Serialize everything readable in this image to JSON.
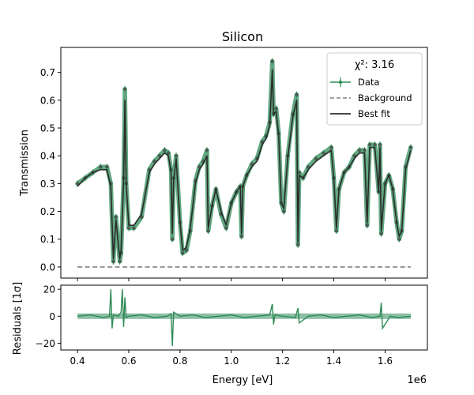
{
  "chart_data": [
    {
      "type": "line",
      "title": "Silicon",
      "xlabel": "",
      "ylabel": "Transmission",
      "xlim": [
        0.335,
        1.765
      ],
      "ylim": [
        -0.04,
        0.79
      ],
      "x_ticks": [
        0.4,
        0.6,
        0.8,
        1.0,
        1.2,
        1.4,
        1.6
      ],
      "x_tick_labels": [
        "",
        "",
        "",
        "",
        "",
        "",
        ""
      ],
      "y_ticks": [
        0.0,
        0.1,
        0.2,
        0.3,
        0.4,
        0.5,
        0.6,
        0.7
      ],
      "y_tick_labels": [
        "0.0",
        "0.1",
        "0.2",
        "0.3",
        "0.4",
        "0.5",
        "0.6",
        "0.7"
      ],
      "grid": false,
      "legend_position": "top-right",
      "legend_title": "χ²: 3.16",
      "series": [
        {
          "name": "Data",
          "style": "points-with-errorbars",
          "color": "#2e8b57",
          "x": [
            0.4,
            0.43,
            0.46,
            0.49,
            0.515,
            0.53,
            0.54,
            0.55,
            0.565,
            0.57,
            0.58,
            0.585,
            0.59,
            0.6,
            0.62,
            0.65,
            0.68,
            0.7,
            0.72,
            0.74,
            0.755,
            0.765,
            0.77,
            0.775,
            0.785,
            0.8,
            0.81,
            0.825,
            0.84,
            0.86,
            0.875,
            0.89,
            0.905,
            0.91,
            0.925,
            0.94,
            0.96,
            0.98,
            1.0,
            1.02,
            1.035,
            1.04,
            1.045,
            1.06,
            1.08,
            1.1,
            1.12,
            1.135,
            1.15,
            1.16,
            1.165,
            1.175,
            1.185,
            1.195,
            1.205,
            1.22,
            1.24,
            1.255,
            1.26,
            1.265,
            1.28,
            1.3,
            1.33,
            1.36,
            1.39,
            1.4,
            1.41,
            1.42,
            1.44,
            1.46,
            1.48,
            1.5,
            1.52,
            1.53,
            1.54,
            1.56,
            1.575,
            1.58,
            1.585,
            1.6,
            1.615,
            1.63,
            1.645,
            1.655,
            1.665,
            1.68,
            1.7
          ],
          "y": [
            0.3,
            0.32,
            0.34,
            0.36,
            0.36,
            0.3,
            0.02,
            0.18,
            0.02,
            0.05,
            0.32,
            0.64,
            0.3,
            0.14,
            0.14,
            0.18,
            0.35,
            0.38,
            0.4,
            0.42,
            0.41,
            0.35,
            0.1,
            0.32,
            0.4,
            0.16,
            0.05,
            0.06,
            0.13,
            0.31,
            0.36,
            0.38,
            0.42,
            0.13,
            0.22,
            0.28,
            0.19,
            0.14,
            0.23,
            0.27,
            0.29,
            0.11,
            0.29,
            0.33,
            0.37,
            0.39,
            0.45,
            0.47,
            0.52,
            0.74,
            0.55,
            0.57,
            0.48,
            0.23,
            0.2,
            0.4,
            0.55,
            0.62,
            0.08,
            0.34,
            0.32,
            0.36,
            0.39,
            0.41,
            0.43,
            0.32,
            0.13,
            0.28,
            0.34,
            0.36,
            0.4,
            0.42,
            0.42,
            0.15,
            0.44,
            0.44,
            0.27,
            0.44,
            0.12,
            0.3,
            0.33,
            0.28,
            0.16,
            0.1,
            0.13,
            0.36,
            0.43
          ]
        },
        {
          "name": "Background",
          "style": "dashed",
          "color": "#808080",
          "x": [
            0.4,
            1.7
          ],
          "y": [
            0.0,
            0.0
          ]
        },
        {
          "name": "Best fit",
          "style": "solid",
          "color": "#2b2b2b",
          "x": [
            0.4,
            0.43,
            0.46,
            0.49,
            0.515,
            0.53,
            0.54,
            0.55,
            0.565,
            0.57,
            0.58,
            0.585,
            0.59,
            0.6,
            0.62,
            0.65,
            0.68,
            0.7,
            0.72,
            0.74,
            0.755,
            0.765,
            0.77,
            0.775,
            0.785,
            0.8,
            0.81,
            0.825,
            0.84,
            0.86,
            0.875,
            0.89,
            0.905,
            0.91,
            0.925,
            0.94,
            0.96,
            0.98,
            1.0,
            1.02,
            1.035,
            1.04,
            1.045,
            1.06,
            1.08,
            1.1,
            1.12,
            1.135,
            1.15,
            1.16,
            1.165,
            1.175,
            1.185,
            1.195,
            1.205,
            1.22,
            1.24,
            1.255,
            1.26,
            1.265,
            1.28,
            1.3,
            1.33,
            1.36,
            1.39,
            1.4,
            1.41,
            1.42,
            1.44,
            1.46,
            1.48,
            1.5,
            1.52,
            1.53,
            1.54,
            1.56,
            1.575,
            1.58,
            1.585,
            1.6,
            1.615,
            1.63,
            1.645,
            1.655,
            1.665,
            1.68,
            1.7
          ],
          "y": [
            0.29,
            0.32,
            0.34,
            0.35,
            0.35,
            0.29,
            0.03,
            0.17,
            0.03,
            0.06,
            0.31,
            0.6,
            0.3,
            0.15,
            0.15,
            0.19,
            0.34,
            0.37,
            0.39,
            0.41,
            0.4,
            0.34,
            0.12,
            0.31,
            0.39,
            0.16,
            0.06,
            0.07,
            0.14,
            0.3,
            0.35,
            0.37,
            0.4,
            0.14,
            0.22,
            0.28,
            0.2,
            0.15,
            0.23,
            0.27,
            0.29,
            0.12,
            0.29,
            0.33,
            0.36,
            0.38,
            0.44,
            0.46,
            0.51,
            0.71,
            0.55,
            0.56,
            0.47,
            0.23,
            0.21,
            0.39,
            0.54,
            0.6,
            0.09,
            0.33,
            0.32,
            0.35,
            0.38,
            0.4,
            0.42,
            0.32,
            0.14,
            0.28,
            0.34,
            0.36,
            0.39,
            0.41,
            0.41,
            0.16,
            0.43,
            0.43,
            0.27,
            0.43,
            0.13,
            0.3,
            0.33,
            0.28,
            0.16,
            0.11,
            0.13,
            0.35,
            0.42
          ]
        }
      ]
    },
    {
      "type": "line",
      "title": "",
      "xlabel": "Energy [eV]",
      "ylabel": "Residuals [1σ]",
      "axis_offset_label": "1e6",
      "xlim": [
        0.335,
        1.765
      ],
      "ylim": [
        -25,
        23
      ],
      "x_ticks": [
        0.4,
        0.6,
        0.8,
        1.0,
        1.2,
        1.4,
        1.6
      ],
      "x_tick_labels": [
        "0.4",
        "0.6",
        "0.8",
        "1.0",
        "1.2",
        "1.4",
        "1.6"
      ],
      "y_ticks": [
        -20,
        0,
        20
      ],
      "y_tick_labels": [
        "−20",
        "0",
        "20"
      ],
      "grid": false,
      "series": [
        {
          "name": "",
          "style": "solid",
          "color": "#2e8b57",
          "x": [
            0.4,
            0.45,
            0.5,
            0.525,
            0.53,
            0.535,
            0.54,
            0.56,
            0.57,
            0.575,
            0.58,
            0.585,
            0.59,
            0.6,
            0.65,
            0.7,
            0.75,
            0.765,
            0.77,
            0.775,
            0.8,
            0.85,
            0.9,
            0.95,
            1.0,
            1.05,
            1.1,
            1.15,
            1.16,
            1.165,
            1.17,
            1.2,
            1.25,
            1.26,
            1.265,
            1.3,
            1.35,
            1.4,
            1.45,
            1.5,
            1.55,
            1.58,
            1.585,
            1.59,
            1.62,
            1.65,
            1.7
          ],
          "y": [
            0,
            1,
            -1,
            0,
            20,
            -9,
            1,
            0,
            3,
            20,
            -8,
            14,
            -1,
            0,
            1,
            -1,
            0,
            2,
            -22,
            3,
            0,
            1,
            -1,
            0,
            1,
            -1,
            0,
            1,
            9,
            -6,
            1,
            0,
            -1,
            6,
            -5,
            0,
            1,
            -1,
            0,
            1,
            -1,
            0,
            10,
            -9,
            0,
            -1,
            0
          ]
        }
      ]
    }
  ]
}
